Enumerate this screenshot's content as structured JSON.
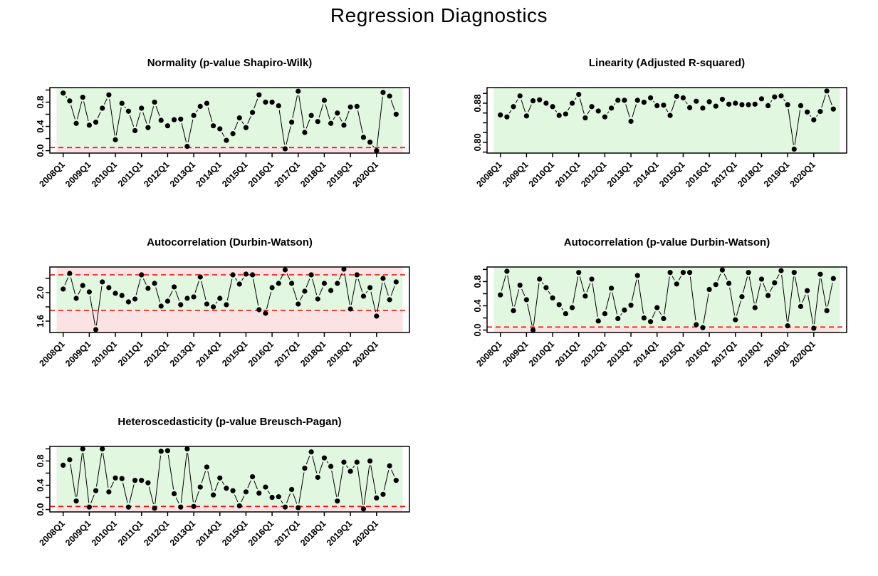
{
  "main_title": "Regression Diagnostics",
  "colors": {
    "band_green": "#e1f7e0",
    "band_pink": "#fce3e3",
    "threshold_red": "#ff0000",
    "point_black": "#000000",
    "background": "#ffffff"
  },
  "x_quarters": [
    "2008Q1",
    "2008Q2",
    "2008Q3",
    "2008Q4",
    "2009Q1",
    "2009Q2",
    "2009Q3",
    "2009Q4",
    "2010Q1",
    "2010Q2",
    "2010Q3",
    "2010Q4",
    "2011Q1",
    "2011Q2",
    "2011Q3",
    "2011Q4",
    "2012Q1",
    "2012Q2",
    "2012Q3",
    "2012Q4",
    "2013Q1",
    "2013Q2",
    "2013Q3",
    "2013Q4",
    "2014Q1",
    "2014Q2",
    "2014Q3",
    "2014Q4",
    "2015Q1",
    "2015Q2",
    "2015Q3",
    "2015Q4",
    "2016Q1",
    "2016Q2",
    "2016Q3",
    "2016Q4",
    "2017Q1",
    "2017Q2",
    "2017Q3",
    "2017Q4",
    "2018Q1",
    "2018Q2",
    "2018Q3",
    "2018Q4",
    "2019Q1",
    "2019Q2",
    "2019Q3",
    "2019Q4",
    "2020Q1",
    "2020Q2",
    "2020Q3",
    "2020Q4"
  ],
  "chart_data": [
    {
      "type": "line",
      "title": "Normality (p-value Shapiro-Wilk)",
      "xlabel": "",
      "ylabel": "",
      "ylim": [
        -0.04,
        1.04
      ],
      "yticks": [
        0.0,
        0.2,
        0.4,
        0.6,
        0.8,
        1.0
      ],
      "ytick_labels": [
        "0.0",
        "",
        "0.4",
        "",
        "0.8",
        ""
      ],
      "xtick_every": 4,
      "xtick_labels": [
        "2008Q1",
        "2009Q1",
        "2010Q1",
        "2011Q1",
        "2012Q1",
        "2013Q1",
        "2014Q1",
        "2015Q1",
        "2016Q1",
        "2017Q1",
        "2018Q1",
        "2019Q1",
        "2020Q1"
      ],
      "thresholds": [
        0.05
      ],
      "green_band": [
        0.05,
        1.04
      ],
      "pink_bands": [
        [
          -0.04,
          0.05
        ]
      ],
      "values": [
        0.95,
        0.82,
        0.45,
        0.88,
        0.42,
        0.47,
        0.7,
        0.92,
        0.18,
        0.78,
        0.65,
        0.33,
        0.7,
        0.38,
        0.8,
        0.5,
        0.41,
        0.51,
        0.52,
        0.07,
        0.58,
        0.73,
        0.78,
        0.41,
        0.36,
        0.17,
        0.28,
        0.54,
        0.38,
        0.63,
        0.92,
        0.8,
        0.8,
        0.74,
        0.03,
        0.47,
        0.98,
        0.3,
        0.58,
        0.48,
        0.83,
        0.45,
        0.62,
        0.42,
        0.72,
        0.73,
        0.22,
        0.14,
        0.0,
        0.96,
        0.9,
        0.6
      ]
    },
    {
      "type": "line",
      "title": "Linearity (Adjusted R-squared)",
      "xlabel": "",
      "ylabel": "",
      "ylim": [
        0.778,
        0.912
      ],
      "yticks": [
        0.78,
        0.8,
        0.82,
        0.84,
        0.86,
        0.88,
        0.9
      ],
      "ytick_labels": [
        "",
        "0.80",
        "",
        "",
        "",
        "0.88",
        ""
      ],
      "xtick_every": 4,
      "xtick_labels": [
        "2008Q1",
        "2009Q1",
        "2010Q1",
        "2011Q1",
        "2012Q1",
        "2013Q1",
        "2014Q1",
        "2015Q1",
        "2016Q1",
        "2017Q1",
        "2018Q1",
        "2019Q1",
        "2020Q1"
      ],
      "thresholds": [],
      "green_band": [
        0.778,
        0.912
      ],
      "pink_bands": [],
      "values": [
        0.856,
        0.852,
        0.873,
        0.895,
        0.854,
        0.885,
        0.887,
        0.88,
        0.873,
        0.855,
        0.858,
        0.88,
        0.898,
        0.85,
        0.873,
        0.864,
        0.852,
        0.87,
        0.886,
        0.886,
        0.843,
        0.886,
        0.882,
        0.891,
        0.875,
        0.876,
        0.855,
        0.894,
        0.891,
        0.871,
        0.884,
        0.87,
        0.883,
        0.874,
        0.888,
        0.878,
        0.88,
        0.877,
        0.877,
        0.878,
        0.889,
        0.875,
        0.893,
        0.895,
        0.877,
        0.786,
        0.875,
        0.862,
        0.846,
        0.863,
        0.905,
        0.868
      ]
    },
    {
      "type": "line",
      "title": "Autocorrelation (Durbin-Watson)",
      "xlabel": "",
      "ylabel": "",
      "ylim": [
        1.44,
        2.36
      ],
      "yticks": [
        1.6,
        1.8,
        2.0,
        2.2
      ],
      "ytick_labels": [
        "1.6",
        "",
        "2.0",
        ""
      ],
      "xtick_every": 4,
      "xtick_labels": [
        "2008Q1",
        "2009Q1",
        "2010Q1",
        "2011Q1",
        "2012Q1",
        "2013Q1",
        "2014Q1",
        "2015Q1",
        "2016Q1",
        "2017Q1",
        "2018Q1",
        "2019Q1",
        "2020Q1"
      ],
      "thresholds": [
        1.75,
        2.25
      ],
      "green_band": [
        1.75,
        2.25
      ],
      "pink_bands": [
        [
          1.44,
          1.75
        ],
        [
          2.25,
          2.36
        ]
      ],
      "values": [
        2.05,
        2.27,
        1.92,
        2.1,
        2.01,
        1.48,
        2.15,
        2.07,
        1.99,
        1.96,
        1.87,
        1.91,
        2.25,
        2.06,
        2.13,
        1.81,
        1.88,
        2.08,
        1.83,
        1.92,
        1.94,
        2.22,
        1.84,
        1.8,
        1.92,
        1.83,
        2.25,
        2.12,
        2.26,
        2.25,
        1.76,
        1.71,
        2.07,
        2.13,
        2.32,
        2.13,
        1.84,
        2.02,
        2.25,
        1.91,
        2.13,
        2.03,
        2.13,
        2.33,
        1.77,
        2.25,
        1.95,
        2.07,
        1.67,
        2.2,
        1.9,
        2.15
      ]
    },
    {
      "type": "line",
      "title": "Autocorrelation (p-value Durbin-Watson)",
      "xlabel": "",
      "ylabel": "",
      "ylim": [
        -0.04,
        1.04
      ],
      "yticks": [
        0.0,
        0.2,
        0.4,
        0.6,
        0.8,
        1.0
      ],
      "ytick_labels": [
        "0.0",
        "",
        "0.4",
        "",
        "0.8",
        ""
      ],
      "xtick_every": 4,
      "xtick_labels": [
        "2008Q1",
        "2009Q1",
        "2010Q1",
        "2011Q1",
        "2012Q1",
        "2013Q1",
        "2014Q1",
        "2015Q1",
        "2016Q1",
        "2017Q1",
        "2018Q1",
        "2019Q1",
        "2020Q1"
      ],
      "thresholds": [
        0.05
      ],
      "green_band": [
        0.05,
        1.04
      ],
      "pink_bands": [
        [
          -0.04,
          0.05
        ]
      ],
      "values": [
        0.58,
        0.97,
        0.32,
        0.74,
        0.5,
        0.0,
        0.84,
        0.7,
        0.53,
        0.42,
        0.27,
        0.37,
        0.95,
        0.56,
        0.84,
        0.15,
        0.27,
        0.69,
        0.19,
        0.33,
        0.41,
        0.9,
        0.2,
        0.14,
        0.37,
        0.19,
        0.95,
        0.76,
        0.95,
        0.95,
        0.09,
        0.04,
        0.67,
        0.75,
        0.99,
        0.77,
        0.17,
        0.55,
        0.95,
        0.37,
        0.84,
        0.57,
        0.78,
        0.98,
        0.07,
        0.95,
        0.39,
        0.65,
        0.03,
        0.92,
        0.32,
        0.85
      ]
    },
    {
      "type": "line",
      "title": "Heteroscedasticity (p-value Breusch-Pagan)",
      "xlabel": "",
      "ylabel": "",
      "ylim": [
        -0.04,
        1.04
      ],
      "yticks": [
        0.0,
        0.2,
        0.4,
        0.6,
        0.8,
        1.0
      ],
      "ytick_labels": [
        "0.0",
        "",
        "0.4",
        "",
        "0.8",
        ""
      ],
      "xtick_every": 4,
      "xtick_labels": [
        "2008Q1",
        "2009Q1",
        "2010Q1",
        "2011Q1",
        "2012Q1",
        "2013Q1",
        "2014Q1",
        "2015Q1",
        "2016Q1",
        "2017Q1",
        "2018Q1",
        "2019Q1",
        "2020Q1"
      ],
      "thresholds": [
        0.05
      ],
      "green_band": [
        0.05,
        1.04
      ],
      "pink_bands": [
        [
          -0.04,
          0.05
        ]
      ],
      "values": [
        0.73,
        0.82,
        0.14,
        1.0,
        0.04,
        0.31,
        1.0,
        0.29,
        0.52,
        0.51,
        0.04,
        0.48,
        0.48,
        0.44,
        0.02,
        0.96,
        0.97,
        0.26,
        0.04,
        1.0,
        0.05,
        0.37,
        0.7,
        0.24,
        0.52,
        0.35,
        0.31,
        0.06,
        0.29,
        0.54,
        0.27,
        0.37,
        0.2,
        0.21,
        0.04,
        0.33,
        0.03,
        0.68,
        0.95,
        0.53,
        0.85,
        0.71,
        0.14,
        0.78,
        0.63,
        0.78,
        0.01,
        0.8,
        0.19,
        0.25,
        0.72,
        0.48
      ]
    }
  ]
}
